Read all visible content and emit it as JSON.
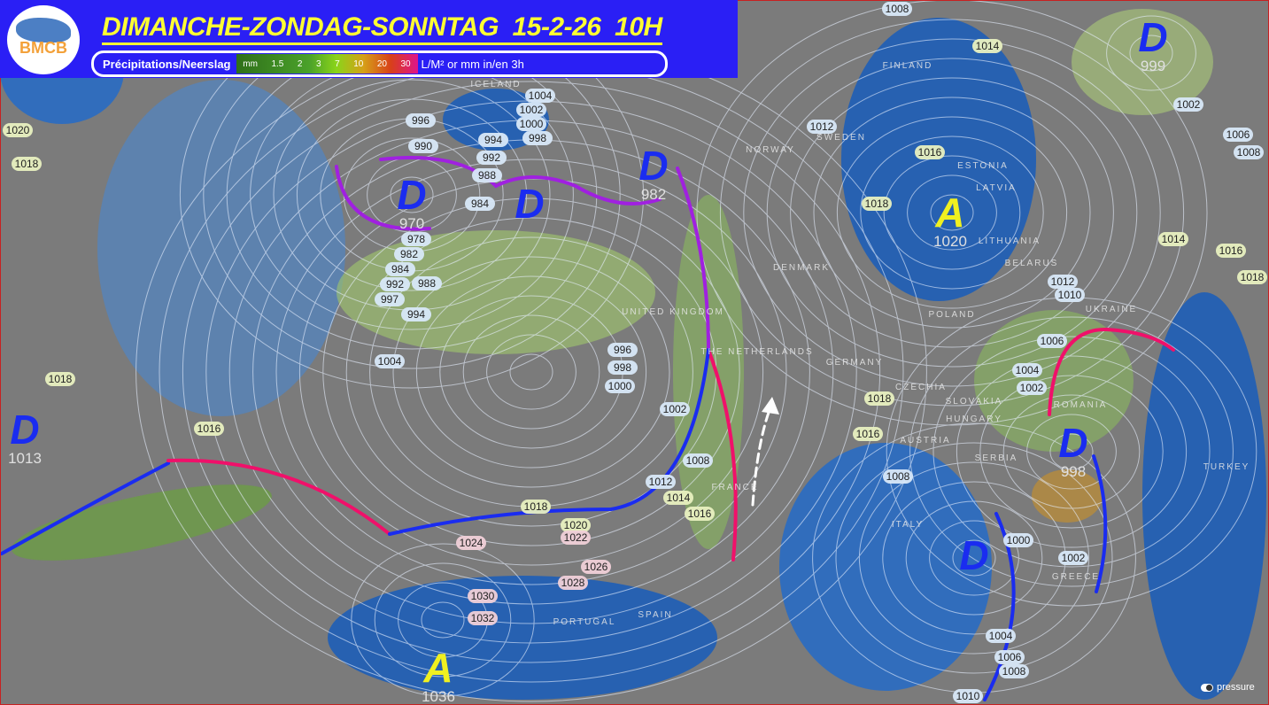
{
  "header": {
    "logo_text": "BMCB",
    "title": "DIMANCHE-ZONDAG-SONNTAG  15-2-26  10H",
    "legend": {
      "label": "Précipitations/Neerslag",
      "scale": [
        "mm",
        "1.5",
        "2",
        "3",
        "7",
        "10",
        "20",
        "30"
      ],
      "unit": "L/M² or mm in/en 3h"
    }
  },
  "colors": {
    "header_bg": "#2a1ff5",
    "title": "#ffff33",
    "low": "#1a2cf0",
    "high": "#f0f020",
    "warm_front": "#f0106a",
    "cold_front": "#1a2cf0",
    "occluded_front": "#a020e0"
  },
  "isobar_labels": [
    "1008",
    "1014",
    "1002",
    "1006",
    "1008",
    "1004",
    "1002",
    "1000",
    "998",
    "996",
    "990",
    "994",
    "992",
    "988",
    "984",
    "1012",
    "1016",
    "1018",
    "1020",
    "1018",
    "978",
    "982",
    "984",
    "988",
    "992",
    "997",
    "994",
    "1004",
    "996",
    "998",
    "1000",
    "1002",
    "1008",
    "1012",
    "1014",
    "1016",
    "1018",
    "1020",
    "1022",
    "1024",
    "1026",
    "1028",
    "1030",
    "1032",
    "1018",
    "1016",
    "1014",
    "1016",
    "1018",
    "1012",
    "1010",
    "1006",
    "1004",
    "1002",
    "1018",
    "1016",
    "1008",
    "1000",
    "1002",
    "1004",
    "1006",
    "1008",
    "1010"
  ],
  "pressure_centers": [
    {
      "type": "D",
      "value": "970"
    },
    {
      "type": "D",
      "value": ""
    },
    {
      "type": "D",
      "value": "982"
    },
    {
      "type": "D",
      "value": "1013"
    },
    {
      "type": "D",
      "value": "999"
    },
    {
      "type": "D",
      "value": "998"
    },
    {
      "type": "D",
      "value": ""
    },
    {
      "type": "A",
      "value": "1020"
    },
    {
      "type": "A",
      "value": "1036"
    }
  ],
  "countries": [
    "FINLAND",
    "ICELAND",
    "SWEDEN",
    "NORWAY",
    "ESTONIA",
    "LATVIA",
    "LITHUANIA",
    "BELARUS",
    "DENMARK",
    "UNITED KINGDOM",
    "POLAND",
    "UKRAINE",
    "THE NETHERLANDS",
    "GERMANY",
    "CZECHIA",
    "SLOVAKIA",
    "HUNGARY",
    "ROMANIA",
    "AUSTRIA",
    "SERBIA",
    "FRANCE",
    "ITALY",
    "TURKEY",
    "GREECE",
    "PORTUGAL",
    "SPAIN"
  ],
  "toggle": {
    "label": "pressure",
    "on": true
  }
}
